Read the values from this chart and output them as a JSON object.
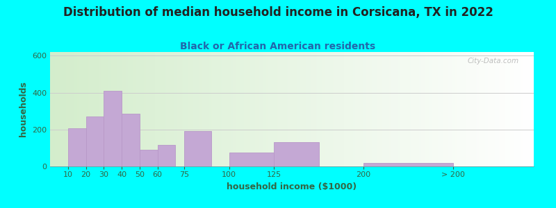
{
  "title": "Distribution of median household income in Corsicana, TX in 2022",
  "subtitle": "Black or African American residents",
  "xlabel": "household income ($1000)",
  "ylabel": "households",
  "background_outer": "#00FFFF",
  "bar_color": "#C4A8D4",
  "bar_edge_color": "#B898C8",
  "title_fontsize": 12,
  "subtitle_fontsize": 10,
  "label_fontsize": 9,
  "tick_fontsize": 8,
  "ylim": [
    0,
    620
  ],
  "yticks": [
    0,
    200,
    400,
    600
  ],
  "bar_lefts": [
    10,
    20,
    30,
    40,
    50,
    60,
    75,
    100,
    125,
    175
  ],
  "bar_heights": [
    207,
    270,
    410,
    285,
    90,
    115,
    193,
    75,
    133,
    18
  ],
  "bar_widths": [
    10,
    10,
    10,
    10,
    10,
    10,
    15,
    25,
    25,
    50
  ],
  "xtick_labels": [
    "10",
    "20",
    "30",
    "40",
    "50",
    "60",
    "75",
    "100",
    "125",
    "200",
    "> 200"
  ],
  "xtick_positions": [
    10,
    20,
    30,
    40,
    50,
    60,
    75,
    100,
    125,
    175,
    225
  ],
  "xlim": [
    0,
    270
  ],
  "watermark": "City-Data.com",
  "title_color": "#222222",
  "subtitle_color": "#2266AA",
  "axis_label_color": "#336644",
  "tick_color": "#336644",
  "grid_color": "#cccccc"
}
